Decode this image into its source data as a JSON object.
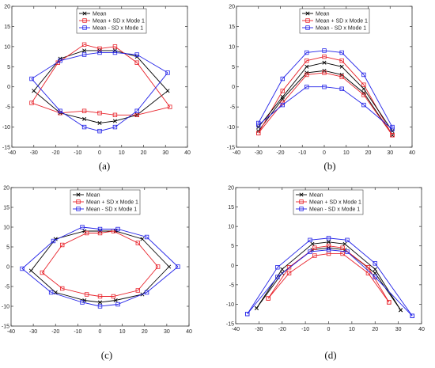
{
  "chart_data": [
    {
      "type": "line",
      "caption": "(a)",
      "xlim": [
        -40,
        40
      ],
      "ylim": [
        -15,
        20
      ],
      "xticks": [
        "-40",
        "-30",
        "-20",
        "-10",
        "0",
        "10",
        "20",
        "30",
        "40"
      ],
      "yticks": [
        "-15",
        "-10",
        "-5",
        "0",
        "5",
        "10",
        "15",
        "20"
      ],
      "legend_position": "top-center",
      "grid": false,
      "series": [
        {
          "name": "Mean",
          "color": "#000000",
          "marker": "x",
          "closed": true,
          "x": [
            31,
            17,
            7,
            0,
            -7,
            -18,
            -30,
            -18,
            -7,
            0,
            7,
            17
          ],
          "y": [
            -1,
            7.5,
            9,
            9,
            9,
            7,
            -1,
            -6.5,
            -8,
            -9,
            -8.5,
            -7
          ]
        },
        {
          "name": "Mean + SD x Mode 1",
          "color": "#e8222a",
          "marker": "square",
          "closed": true,
          "x": [
            32,
            17,
            7,
            0,
            -7,
            -19,
            -31,
            -18,
            -7,
            0,
            7,
            17
          ],
          "y": [
            -5,
            6,
            10,
            9.5,
            10.5,
            6,
            -4,
            -6.5,
            -6,
            -6.5,
            -7,
            -7
          ]
        },
        {
          "name": "Mean - SD x Mode 1",
          "color": "#2222e8",
          "marker": "square",
          "closed": true,
          "x": [
            31,
            17,
            7,
            0,
            -7,
            -18,
            -31,
            -18,
            -7,
            0,
            7,
            17
          ],
          "y": [
            3.5,
            8,
            8.5,
            8.5,
            8,
            6.5,
            2,
            -6,
            -10,
            -11,
            -10,
            -6
          ]
        }
      ]
    },
    {
      "type": "line",
      "caption": "(b)",
      "xlim": [
        -40,
        40
      ],
      "ylim": [
        -15,
        20
      ],
      "xticks": [
        "-40",
        "-30",
        "-20",
        "-10",
        "0",
        "10",
        "20",
        "30",
        "40"
      ],
      "yticks": [
        "-15",
        "-10",
        "-5",
        "0",
        "5",
        "10",
        "15",
        "20"
      ],
      "legend_position": "top-center",
      "grid": false,
      "series": [
        {
          "name": "Mean",
          "color": "#000000",
          "marker": "x",
          "closed": false,
          "x": [
            -30,
            -19,
            -8,
            0,
            8,
            18,
            31
          ],
          "y": [
            -11,
            -3,
            3.5,
            4,
            3,
            -1.5,
            -12
          ]
        },
        {
          "name": "Mean + SD x Mode 1",
          "color": "#e8222a",
          "marker": "square",
          "closed": false,
          "x": [
            -30,
            -19,
            -8,
            0,
            8,
            18,
            31
          ],
          "y": [
            -11.5,
            -1,
            6.5,
            7.5,
            6.5,
            0.5,
            -12
          ]
        },
        {
          "name": "Mean - SD x Mode 1",
          "color": "#2222e8",
          "marker": "square",
          "closed": false,
          "x": [
            -30,
            -19,
            -8,
            0,
            8,
            18,
            31
          ],
          "y": [
            -9,
            2,
            8.5,
            9,
            8.5,
            3,
            -10
          ]
        },
        {
          "name": "",
          "color": "#000000",
          "marker": "x",
          "closed": false,
          "x": [
            -30,
            -19,
            -8,
            0,
            8,
            18,
            31
          ],
          "y": [
            -10,
            -2.5,
            5,
            6,
            5,
            -0.5,
            -11
          ]
        },
        {
          "name": "",
          "color": "#e8222a",
          "marker": "square",
          "closed": false,
          "x": [
            -30,
            -19,
            -8,
            0,
            8,
            18,
            31
          ],
          "y": [
            -11.5,
            -4,
            3,
            3.5,
            2.5,
            -2,
            -12
          ]
        },
        {
          "name": "",
          "color": "#2222e8",
          "marker": "square",
          "closed": false,
          "x": [
            -30,
            -19,
            -8,
            0,
            8,
            18,
            31
          ],
          "y": [
            -9.5,
            -4.5,
            0,
            0,
            -0.5,
            -4.5,
            -10.5
          ]
        }
      ]
    },
    {
      "type": "line",
      "caption": "(c)",
      "xlim": [
        -40,
        40
      ],
      "ylim": [
        -15,
        20
      ],
      "xticks": [
        "-40",
        "-30",
        "-20",
        "-10",
        "0",
        "10",
        "20",
        "30",
        "40"
      ],
      "yticks": [
        "-15",
        "-10",
        "-5",
        "0",
        "5",
        "10",
        "15",
        "20"
      ],
      "legend_position": "top-left",
      "grid": false,
      "series": [
        {
          "name": "Mean",
          "color": "#000000",
          "marker": "x",
          "closed": true,
          "x": [
            31,
            19,
            7,
            0,
            -7,
            -20,
            -31,
            -20,
            -7,
            0,
            7,
            19
          ],
          "y": [
            0,
            7,
            9,
            9,
            9,
            7,
            -1,
            -6.5,
            -8.5,
            -9,
            -8.5,
            -7
          ]
        },
        {
          "name": "Mean + SD x Mode 1",
          "color": "#e8222a",
          "marker": "square",
          "closed": true,
          "x": [
            26,
            17,
            6,
            0,
            -6,
            -17,
            -26,
            -17,
            -6,
            0,
            6,
            17
          ],
          "y": [
            0,
            6,
            9,
            8.5,
            8.5,
            5.5,
            -1.5,
            -5.5,
            -7,
            -7.5,
            -7.5,
            -6
          ]
        },
        {
          "name": "Mean - SD x Mode 1",
          "color": "#2222e8",
          "marker": "square",
          "closed": true,
          "x": [
            35,
            21,
            8,
            0,
            -8,
            -21,
            -35,
            -22,
            -8,
            0,
            8,
            21
          ],
          "y": [
            0,
            7.5,
            9.5,
            9.5,
            10,
            6.5,
            -0.5,
            -6.5,
            -9,
            -10,
            -9.5,
            -6.5
          ]
        }
      ]
    },
    {
      "type": "line",
      "caption": "(d)",
      "xlim": [
        -40,
        40
      ],
      "ylim": [
        -15,
        20
      ],
      "xticks": [
        "-40",
        "-30",
        "-20",
        "-10",
        "0",
        "10",
        "20",
        "30",
        "40"
      ],
      "yticks": [
        "-15",
        "-10",
        "-5",
        "0",
        "5",
        "10",
        "15",
        "20"
      ],
      "legend_position": "top-left",
      "grid": false,
      "series": [
        {
          "name": "Mean",
          "color": "#000000",
          "marker": "x",
          "closed": false,
          "x": [
            -31,
            -20,
            -7,
            0,
            7,
            20,
            31
          ],
          "y": [
            -11,
            -2,
            4,
            4.5,
            4,
            -2,
            -11.5
          ]
        },
        {
          "name": "Mean + SD x Mode 1",
          "color": "#e8222a",
          "marker": "square",
          "closed": false,
          "x": [
            -26,
            -17,
            -6,
            0,
            6,
            17,
            26
          ],
          "y": [
            -8.5,
            -2,
            2.5,
            3,
            3,
            -2,
            -9.5
          ]
        },
        {
          "name": "Mean - SD x Mode 1",
          "color": "#2222e8",
          "marker": "square",
          "closed": false,
          "x": [
            -35,
            -22,
            -8,
            0,
            8,
            20,
            36
          ],
          "y": [
            -12.5,
            -0.5,
            6.5,
            7,
            6.5,
            0.5,
            -13
          ]
        },
        {
          "name": "",
          "color": "#000000",
          "marker": "x",
          "closed": false,
          "x": [
            -31,
            -20,
            -7,
            0,
            7,
            20,
            31
          ],
          "y": [
            -11,
            -1,
            5.5,
            6,
            5.5,
            -1,
            -11.5
          ]
        },
        {
          "name": "",
          "color": "#e8222a",
          "marker": "square",
          "closed": false,
          "x": [
            -26,
            -17,
            -6,
            0,
            6,
            17,
            26
          ],
          "y": [
            -8.5,
            -0.5,
            4.5,
            5,
            4.5,
            -0.5,
            -9.5
          ]
        },
        {
          "name": "",
          "color": "#2222e8",
          "marker": "square",
          "closed": false,
          "x": [
            -35,
            -22,
            -8,
            0,
            8,
            20,
            36
          ],
          "y": [
            -12.5,
            -3,
            3.5,
            4,
            3.5,
            -3,
            -13
          ]
        }
      ]
    }
  ]
}
